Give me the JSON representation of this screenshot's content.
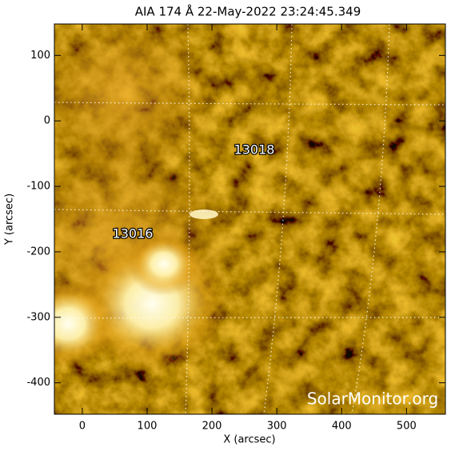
{
  "chart_data": {
    "type": "image",
    "title": "AIA 174 Å 22-May-2022 23:24:45.349",
    "x_label": "X (arcsec)",
    "y_label": "Y (arcsec)",
    "xlim": [
      -43,
      560
    ],
    "ylim": [
      -448,
      148
    ],
    "xticks": [
      0,
      100,
      200,
      300,
      400,
      500
    ],
    "yticks": [
      -400,
      -300,
      -200,
      -100,
      0,
      100
    ],
    "annotations": [
      "13018",
      "13016"
    ],
    "watermark": "SolarMonitor.org"
  }
}
